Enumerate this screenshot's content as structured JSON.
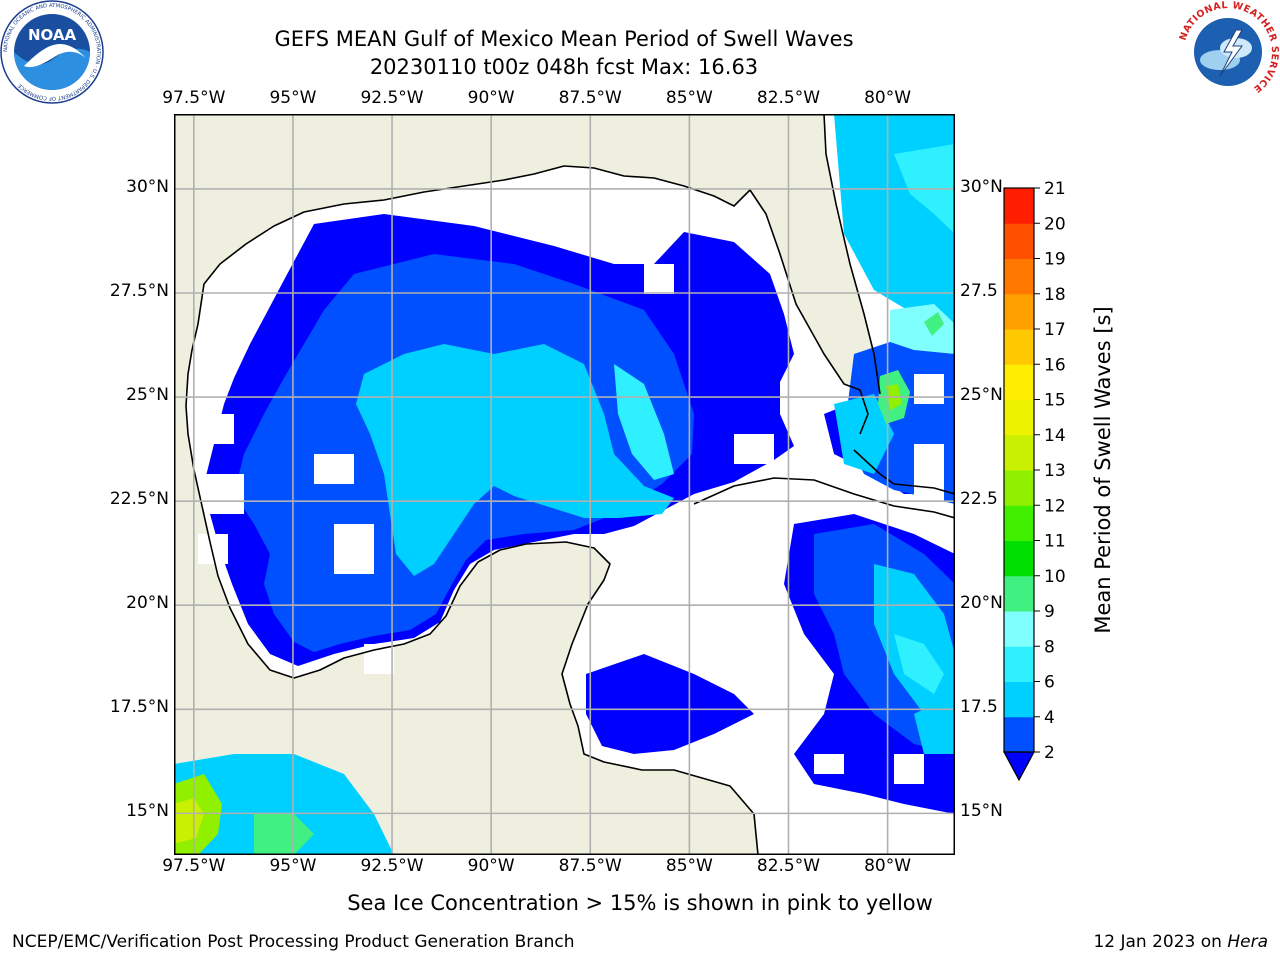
{
  "header": {
    "title_line1": "GEFS MEAN Gulf of Mexico Mean Period of Swell Waves",
    "title_line2": "20230110 t00z 048h fcst   Max: 16.63"
  },
  "logos": {
    "left": "noaa-logo",
    "left_text": "NOAA",
    "left_ring_text": "NATIONAL OCEANIC AND ATMOSPHERIC ADMINISTRATION · U.S. DEPARTMENT OF COMMERCE",
    "right": "nws-logo",
    "right_ring_text": "NATIONAL WEATHER SERVICE"
  },
  "map": {
    "lon_labels": [
      "97.5°W",
      "95°W",
      "92.5°W",
      "90°W",
      "87.5°W",
      "85°W",
      "82.5°W",
      "80°W"
    ],
    "lon_values": [
      -97.5,
      -95,
      -92.5,
      -90,
      -87.5,
      -85,
      -82.5,
      -80
    ],
    "lat_labels_left": [
      "30°N",
      "27.5°N",
      "25°N",
      "22.5°N",
      "20°N",
      "17.5°N",
      "15°N"
    ],
    "lat_labels_right": [
      "30°N",
      "27.5",
      "25°N",
      "22.5",
      "20°N",
      "17.5",
      "15°N"
    ],
    "lat_values": [
      30,
      27.5,
      25,
      22.5,
      20,
      17.5,
      15
    ],
    "lon_range": [
      -98,
      -78.3
    ],
    "lat_range": [
      14,
      31.8
    ],
    "colors": {
      "land": "#efefdf",
      "ocean_below_2s": "#ffffff",
      "grid": "#b0b0b0",
      "coastline": "#000000"
    }
  },
  "colorbar": {
    "label": "Mean Period of Swell Waves [s]",
    "ticks": [
      "21",
      "20",
      "19",
      "18",
      "17",
      "16",
      "15",
      "14",
      "13",
      "12",
      "11",
      "10",
      "9",
      "8",
      "6",
      "4",
      "2"
    ],
    "levels": [
      2,
      4,
      6,
      8,
      9,
      10,
      11,
      12,
      13,
      14,
      15,
      16,
      17,
      18,
      19,
      20,
      21
    ],
    "colors": [
      "#0050ff",
      "#00d0ff",
      "#2ef0ff",
      "#80ffff",
      "#40f080",
      "#00e000",
      "#40f000",
      "#90f000",
      "#c8f000",
      "#ecf200",
      "#ffee00",
      "#ffc800",
      "#ffa000",
      "#ff7800",
      "#ff5000",
      "#ff1e00"
    ],
    "under_color": "#0000ff",
    "extend": "min"
  },
  "caption": "Sea Ice Concentration > 15% is shown in pink to yellow",
  "footer": {
    "left": "NCEP/EMC/Verification Post Processing Product Generation Branch",
    "right_date": "12 Jan 2023 on ",
    "right_host": "Hera"
  }
}
